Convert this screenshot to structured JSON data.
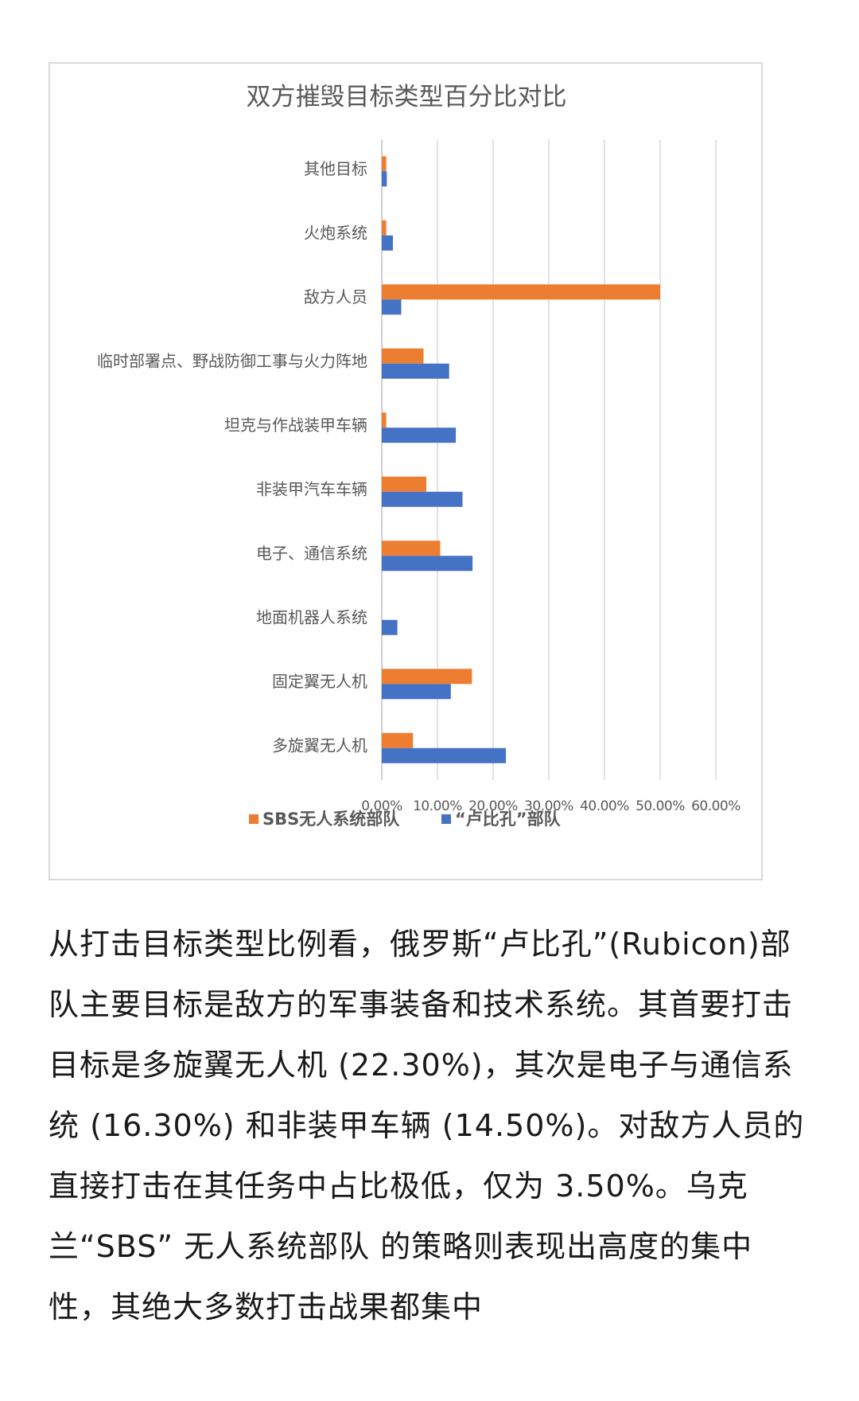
{
  "chart_data": {
    "type": "bar",
    "orientation": "horizontal",
    "title": "双方摧毁目标类型百分比对比",
    "categories": [
      "其他目标",
      "火炮系统",
      "敌方人员",
      "临时部署点、野战防御工事与火力阵地",
      "坦克与作战装甲车辆",
      "非装甲汽车车辆",
      "电子、通信系统",
      "地面机器人系统",
      "固定翼无人机",
      "多旋翼无人机"
    ],
    "series": [
      {
        "name": "SBS无人系统部队",
        "color": "#ED7D31",
        "values": [
          0.8,
          0.8,
          50.0,
          7.5,
          0.8,
          8.0,
          10.5,
          0.0,
          16.2,
          5.6
        ]
      },
      {
        "name": "“卢比孔”部队",
        "color": "#4472C4",
        "values": [
          0.9,
          2.0,
          3.5,
          12.1,
          13.3,
          14.5,
          16.3,
          2.8,
          12.4,
          22.3
        ]
      }
    ],
    "xlim": [
      0,
      60
    ],
    "xticks": [
      "0.00%",
      "10.00%",
      "20.00%",
      "30.00%",
      "40.00%",
      "50.00%",
      "60.00%"
    ],
    "grid": "vertical",
    "legend_position": "bottom"
  },
  "article": {
    "paragraph": "从打击目标类型比例看，俄罗斯“卢比孔”(Rubicon)部队主要目标是敌方的军事装备和技术系统。其首要打击目标是多旋翼无人机 (22.30%)，其次是电子与通信系统 (16.30%) 和非装甲车辆 (14.50%)。对敌方人员的直接打击在其任务中占比极低，仅为 3.50%。乌克兰“SBS” 无人系统部队 的策略则表现出高度的集中性，其绝大多数打击战果都集中"
  }
}
